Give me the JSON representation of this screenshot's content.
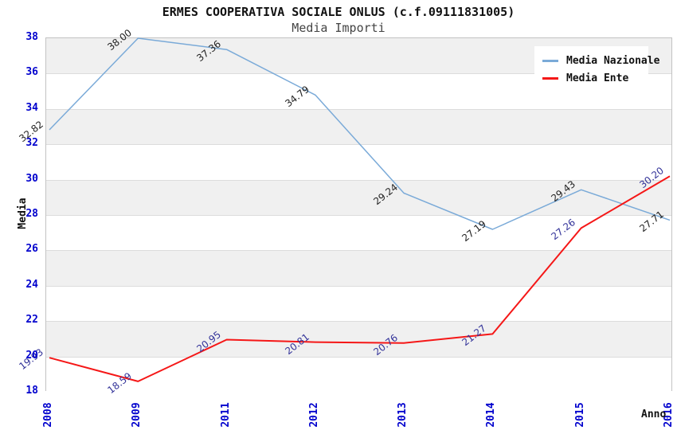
{
  "header": {
    "title": "ERMES COOPERATIVA SOCIALE ONLUS (c.f.09111831005)",
    "subtitle": "Media Importi"
  },
  "legend": {
    "position": "top-right",
    "items": [
      {
        "label": "Media Nazionale",
        "color": "#7aaad8"
      },
      {
        "label": "Media Ente",
        "color": "#f51717"
      }
    ]
  },
  "axes": {
    "ylabel": "Media",
    "xlabel": "Anno",
    "ytick_labels": [
      "38",
      "36",
      "34",
      "32",
      "30",
      "28",
      "26",
      "24",
      "22",
      "20",
      "18"
    ],
    "xtick_labels": [
      "2008",
      "2009",
      "2011",
      "2012",
      "2013",
      "2014",
      "2015",
      "2016"
    ],
    "tick_color": "#0000cd"
  },
  "chart_data": {
    "type": "line",
    "title": "ERMES COOPERATIVA SOCIALE ONLUS (c.f.09111831005)",
    "subtitle": "Media Importi",
    "xlabel": "Anno",
    "ylabel": "Media",
    "categories": [
      "2008",
      "2009",
      "2011",
      "2012",
      "2013",
      "2014",
      "2015",
      "2016"
    ],
    "series": [
      {
        "name": "Media Nazionale",
        "color": "#7aaad8",
        "label_color": "#222222",
        "line_width": 1.5,
        "values": [
          32.82,
          38.0,
          37.36,
          34.79,
          29.24,
          27.19,
          29.43,
          27.71
        ]
      },
      {
        "name": "Media Ente",
        "color": "#f51717",
        "label_color": "#333399",
        "line_width": 2,
        "values": [
          19.93,
          18.59,
          20.95,
          20.81,
          20.76,
          21.27,
          27.26,
          30.2
        ]
      }
    ],
    "ylim": [
      18,
      38
    ],
    "ytick_step": 2,
    "grid": "banded-horizontal",
    "band_color": "#f0f0f0",
    "band_alt_color": "#ffffff",
    "legend_position": "top-right",
    "value_labels_decimals": 2
  }
}
